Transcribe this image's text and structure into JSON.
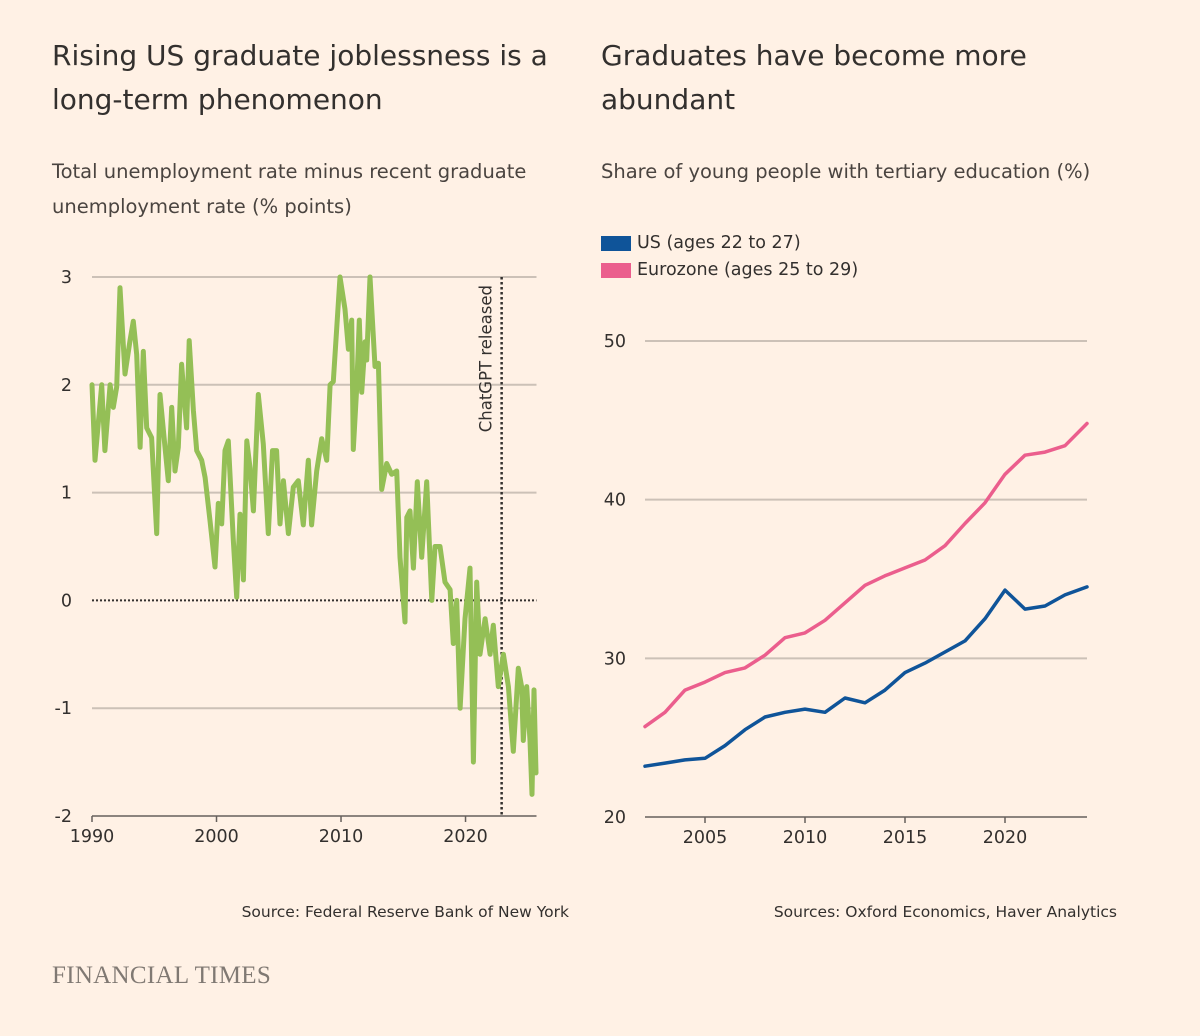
{
  "brand": "FINANCIAL TIMES",
  "colors": {
    "background": "#fff1e5",
    "green": "#94bf56",
    "us": "#0f5499",
    "eurozone": "#eb5e8d",
    "grid": "#ccc1b7"
  },
  "chart_data": [
    {
      "type": "line",
      "title": "Rising US graduate joblessness is a long-term phenomenon",
      "subtitle": "Total unemployment rate minus recent graduate unemployment rate (% points)",
      "source": "Source: Federal Reserve Bank of New York",
      "xlim": [
        1990,
        2025.7
      ],
      "ylim": [
        -2,
        3
      ],
      "xticks": [
        1990,
        2000,
        2010,
        2020
      ],
      "yticks": [
        3,
        2,
        1,
        0,
        -1,
        -2
      ],
      "grid": true,
      "reference_line_y": 0,
      "annotation": {
        "label": "ChatGPT released",
        "x": 2022.9
      },
      "series": [
        {
          "points": [
            [
              1990.0,
              2.0
            ],
            [
              1990.24,
              1.3
            ],
            [
              1990.78,
              2.0
            ],
            [
              1991.04,
              1.39
            ],
            [
              1991.45,
              2.0
            ],
            [
              1991.71,
              1.79
            ],
            [
              1991.98,
              1.98
            ],
            [
              1992.25,
              2.9
            ],
            [
              1992.65,
              2.1
            ],
            [
              1993.05,
              2.41
            ],
            [
              1993.32,
              2.59
            ],
            [
              1993.59,
              2.28
            ],
            [
              1993.86,
              1.42
            ],
            [
              1994.12,
              2.31
            ],
            [
              1994.39,
              1.6
            ],
            [
              1994.79,
              1.51
            ],
            [
              1995.2,
              0.62
            ],
            [
              1995.46,
              1.91
            ],
            [
              1995.86,
              1.42
            ],
            [
              1996.13,
              1.11
            ],
            [
              1996.4,
              1.79
            ],
            [
              1996.67,
              1.2
            ],
            [
              1996.93,
              1.42
            ],
            [
              1997.2,
              2.19
            ],
            [
              1997.6,
              1.6
            ],
            [
              1997.81,
              2.41
            ],
            [
              1998.14,
              1.76
            ],
            [
              1998.41,
              1.39
            ],
            [
              1998.81,
              1.3
            ],
            [
              1999.08,
              1.14
            ],
            [
              1999.48,
              0.74
            ],
            [
              1999.88,
              0.31
            ],
            [
              2000.14,
              0.9
            ],
            [
              2000.42,
              0.71
            ],
            [
              2000.68,
              1.39
            ],
            [
              2000.95,
              1.48
            ],
            [
              2001.35,
              0.56
            ],
            [
              2001.62,
              0.03
            ],
            [
              2001.89,
              0.8
            ],
            [
              2002.16,
              0.19
            ],
            [
              2002.43,
              1.48
            ],
            [
              2002.69,
              1.23
            ],
            [
              2002.96,
              0.83
            ],
            [
              2003.36,
              1.91
            ],
            [
              2003.76,
              1.45
            ],
            [
              2004.16,
              0.62
            ],
            [
              2004.5,
              1.39
            ],
            [
              2004.83,
              1.39
            ],
            [
              2005.1,
              0.71
            ],
            [
              2005.37,
              1.11
            ],
            [
              2005.77,
              0.62
            ],
            [
              2006.17,
              1.05
            ],
            [
              2006.57,
              1.11
            ],
            [
              2006.97,
              0.7
            ],
            [
              2007.37,
              1.3
            ],
            [
              2007.64,
              0.7
            ],
            [
              2008.05,
              1.2
            ],
            [
              2008.45,
              1.5
            ],
            [
              2008.85,
              1.3
            ],
            [
              2009.12,
              2.0
            ],
            [
              2009.38,
              2.03
            ],
            [
              2009.92,
              3.0
            ],
            [
              2010.32,
              2.7
            ],
            [
              2010.59,
              2.33
            ],
            [
              2010.86,
              2.6
            ],
            [
              2010.99,
              1.4
            ],
            [
              2011.26,
              1.97
            ],
            [
              2011.47,
              2.6
            ],
            [
              2011.66,
              1.93
            ],
            [
              2011.93,
              2.4
            ],
            [
              2012.06,
              2.23
            ],
            [
              2012.33,
              3.0
            ],
            [
              2012.73,
              2.17
            ],
            [
              2013.0,
              2.2
            ],
            [
              2013.27,
              1.03
            ],
            [
              2013.67,
              1.27
            ],
            [
              2014.07,
              1.17
            ],
            [
              2014.47,
              1.2
            ],
            [
              2014.74,
              0.4
            ],
            [
              2015.14,
              -0.2
            ],
            [
              2015.28,
              0.77
            ],
            [
              2015.54,
              0.83
            ],
            [
              2015.81,
              0.3
            ],
            [
              2016.13,
              1.1
            ],
            [
              2016.48,
              0.4
            ],
            [
              2016.88,
              1.1
            ],
            [
              2017.29,
              0.0
            ],
            [
              2017.55,
              0.5
            ],
            [
              2017.95,
              0.5
            ],
            [
              2018.35,
              0.17
            ],
            [
              2018.76,
              0.1
            ],
            [
              2019.02,
              -0.4
            ],
            [
              2019.29,
              0.0
            ],
            [
              2019.56,
              -1.0
            ],
            [
              2019.96,
              -0.17
            ],
            [
              2020.36,
              0.3
            ],
            [
              2020.63,
              -1.5
            ],
            [
              2020.9,
              0.17
            ],
            [
              2021.16,
              -0.5
            ],
            [
              2021.57,
              -0.17
            ],
            [
              2021.97,
              -0.5
            ],
            [
              2022.23,
              -0.23
            ],
            [
              2022.63,
              -0.8
            ],
            [
              2023.04,
              -0.5
            ],
            [
              2023.44,
              -0.8
            ],
            [
              2023.84,
              -1.4
            ],
            [
              2024.24,
              -0.63
            ],
            [
              2024.5,
              -0.8
            ],
            [
              2024.64,
              -1.3
            ],
            [
              2024.91,
              -0.8
            ],
            [
              2025.18,
              -1.3
            ],
            [
              2025.34,
              -1.8
            ],
            [
              2025.5,
              -0.83
            ],
            [
              2025.66,
              -1.6
            ]
          ]
        }
      ]
    },
    {
      "type": "line",
      "title": "Graduates have become more abundant",
      "subtitle": "Share of young people with tertiary education (%)",
      "source": "Sources: Oxford Economics, Haver Analytics",
      "xlim": [
        2002,
        2024.1
      ],
      "ylim": [
        20,
        50
      ],
      "xticks": [
        2005,
        2010,
        2015,
        2020
      ],
      "yticks": [
        50,
        40,
        30,
        20
      ],
      "grid": true,
      "legend": "top-left",
      "series": [
        {
          "name": "US (ages 22 to 27)",
          "points": [
            [
              2002,
              23.2
            ],
            [
              2003,
              23.4
            ],
            [
              2004,
              23.6
            ],
            [
              2005,
              23.7
            ],
            [
              2006,
              24.5
            ],
            [
              2007,
              25.5
            ],
            [
              2008,
              26.3
            ],
            [
              2009,
              26.6
            ],
            [
              2010,
              26.8
            ],
            [
              2011,
              26.6
            ],
            [
              2012,
              27.5
            ],
            [
              2013,
              27.2
            ],
            [
              2014,
              28.0
            ],
            [
              2015,
              29.1
            ],
            [
              2016,
              29.7
            ],
            [
              2017,
              30.4
            ],
            [
              2018,
              31.1
            ],
            [
              2019,
              32.5
            ],
            [
              2020,
              34.3
            ],
            [
              2021,
              33.1
            ],
            [
              2022,
              33.3
            ],
            [
              2023,
              34.0
            ],
            [
              2024.1,
              34.5
            ]
          ]
        },
        {
          "name": "Eurozone (ages 25 to 29)",
          "points": [
            [
              2002,
              25.7
            ],
            [
              2003,
              26.6
            ],
            [
              2004,
              28.0
            ],
            [
              2005,
              28.5
            ],
            [
              2006,
              29.1
            ],
            [
              2007,
              29.4
            ],
            [
              2008,
              30.2
            ],
            [
              2009,
              31.3
            ],
            [
              2010,
              31.6
            ],
            [
              2011,
              32.4
            ],
            [
              2012,
              33.5
            ],
            [
              2013,
              34.6
            ],
            [
              2014,
              35.2
            ],
            [
              2015,
              35.7
            ],
            [
              2016,
              36.2
            ],
            [
              2017,
              37.1
            ],
            [
              2018,
              38.5
            ],
            [
              2019,
              39.8
            ],
            [
              2020,
              41.6
            ],
            [
              2021,
              42.8
            ],
            [
              2022,
              43.0
            ],
            [
              2023,
              43.4
            ],
            [
              2024.1,
              44.8
            ]
          ]
        }
      ]
    }
  ]
}
